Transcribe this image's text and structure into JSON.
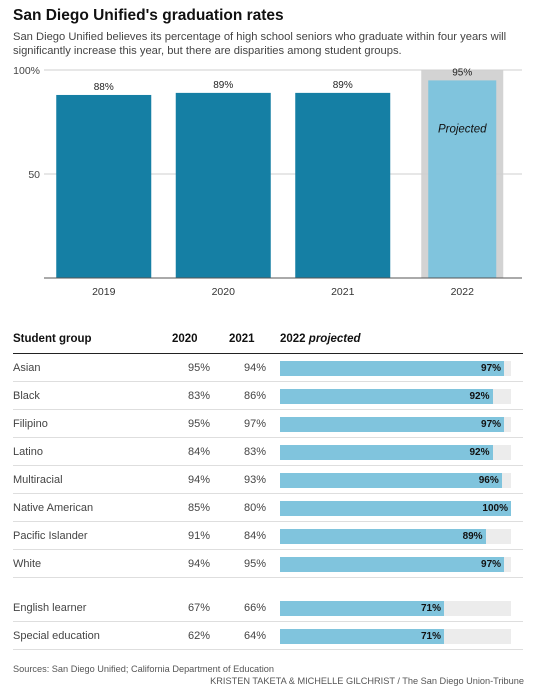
{
  "header": {
    "title": "San Diego Unified's graduation rates",
    "subtitle": "San Diego Unified believes its percentage of high school seniors who graduate within four years will significantly increase this year, but there are disparities among student groups."
  },
  "chart_data": [
    {
      "type": "bar",
      "categories": [
        "2019",
        "2020",
        "2021",
        "2022"
      ],
      "values": [
        88,
        89,
        89,
        95
      ],
      "value_labels": [
        "88%",
        "89%",
        "89%",
        "95%"
      ],
      "ylim": [
        0,
        100
      ],
      "yticks": [
        "100%",
        "50"
      ],
      "projected_category": "2022",
      "projected_label": "Projected",
      "colors": {
        "actual": "#157fa4",
        "projected": "#80c4dd",
        "projected_bg": "#d3d3d3"
      }
    },
    {
      "type": "table",
      "columns": [
        "Student group",
        "2020",
        "2021",
        "2022"
      ],
      "column_suffix": "projected",
      "bar_max": 100,
      "bar_color": "#80c4dd",
      "rows": [
        {
          "group": "Asian",
          "y2020": "95%",
          "y2021": "94%",
          "y2022": 97,
          "y2022_label": "97%"
        },
        {
          "group": "Black",
          "y2020": "83%",
          "y2021": "86%",
          "y2022": 92,
          "y2022_label": "92%"
        },
        {
          "group": "Filipino",
          "y2020": "95%",
          "y2021": "97%",
          "y2022": 97,
          "y2022_label": "97%"
        },
        {
          "group": "Latino",
          "y2020": "84%",
          "y2021": "83%",
          "y2022": 92,
          "y2022_label": "92%"
        },
        {
          "group": "Multiracial",
          "y2020": "94%",
          "y2021": "93%",
          "y2022": 96,
          "y2022_label": "96%"
        },
        {
          "group": "Native American",
          "y2020": "85%",
          "y2021": "80%",
          "y2022": 100,
          "y2022_label": "100%"
        },
        {
          "group": "Pacific Islander",
          "y2020": "91%",
          "y2021": "84%",
          "y2022": 89,
          "y2022_label": "89%"
        },
        {
          "group": "White",
          "y2020": "94%",
          "y2021": "95%",
          "y2022": 97,
          "y2022_label": "97%"
        },
        {
          "group": "English learner",
          "y2020": "67%",
          "y2021": "66%",
          "y2022": 71,
          "y2022_label": "71%"
        },
        {
          "group": "Special education",
          "y2020": "62%",
          "y2021": "64%",
          "y2022": 71,
          "y2022_label": "71%"
        }
      ]
    }
  ],
  "footer": {
    "source": "Sources: San Diego Unified; California Department of Education",
    "credit": "KRISTEN TAKETA & MICHELLE GILCHRIST / The San Diego Union-Tribune"
  }
}
